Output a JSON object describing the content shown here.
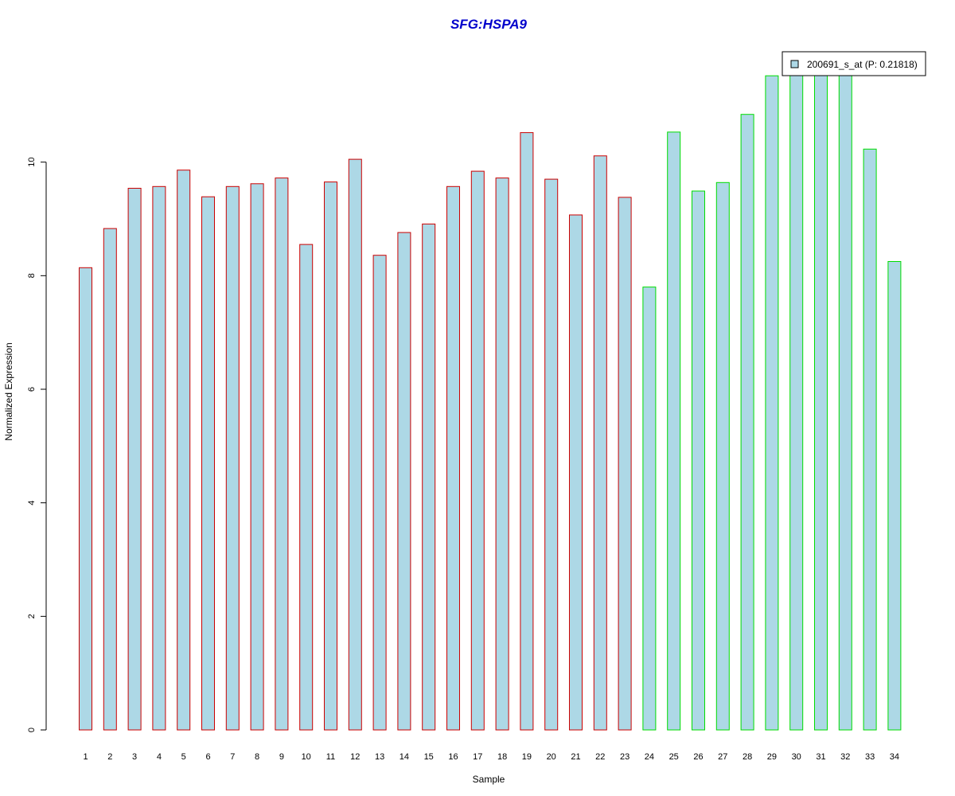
{
  "chart_data": {
    "type": "bar",
    "title": "SFG:HSPA9",
    "xlabel": "Sample",
    "ylabel": "Normalized Expression",
    "ylim": [
      0,
      12
    ],
    "yticks": [
      0,
      2,
      4,
      6,
      8,
      10
    ],
    "categories": [
      "1",
      "2",
      "3",
      "4",
      "5",
      "6",
      "7",
      "8",
      "9",
      "10",
      "11",
      "12",
      "13",
      "14",
      "15",
      "16",
      "17",
      "18",
      "19",
      "20",
      "21",
      "22",
      "23",
      "24",
      "25",
      "26",
      "27",
      "28",
      "29",
      "30",
      "31",
      "32",
      "33",
      "34"
    ],
    "series": [
      {
        "name": "200691_s_at (P: 0.21818)",
        "fill": "#add8e6",
        "values": [
          8.14,
          8.83,
          9.54,
          9.57,
          9.86,
          9.39,
          9.57,
          9.62,
          9.72,
          8.55,
          9.65,
          10.05,
          8.36,
          8.76,
          8.91,
          9.57,
          9.84,
          9.72,
          10.52,
          9.7,
          9.07,
          10.11,
          9.38,
          7.8,
          10.53,
          9.49,
          9.64,
          10.84,
          11.52,
          11.92,
          11.6,
          11.84,
          10.23,
          8.25
        ]
      }
    ],
    "group_border_colors": [
      "#cc0000",
      "#cc0000",
      "#cc0000",
      "#cc0000",
      "#cc0000",
      "#cc0000",
      "#cc0000",
      "#cc0000",
      "#cc0000",
      "#cc0000",
      "#cc0000",
      "#cc0000",
      "#cc0000",
      "#cc0000",
      "#cc0000",
      "#cc0000",
      "#cc0000",
      "#cc0000",
      "#cc0000",
      "#cc0000",
      "#cc0000",
      "#cc0000",
      "#cc0000",
      "#00dd00",
      "#00dd00",
      "#00dd00",
      "#00dd00",
      "#00dd00",
      "#00dd00",
      "#00dd00",
      "#00dd00",
      "#00dd00",
      "#00dd00",
      "#00dd00"
    ],
    "legend": {
      "placement": "top-right",
      "entries": [
        "200691_s_at (P: 0.21818)"
      ]
    },
    "grid": false
  }
}
